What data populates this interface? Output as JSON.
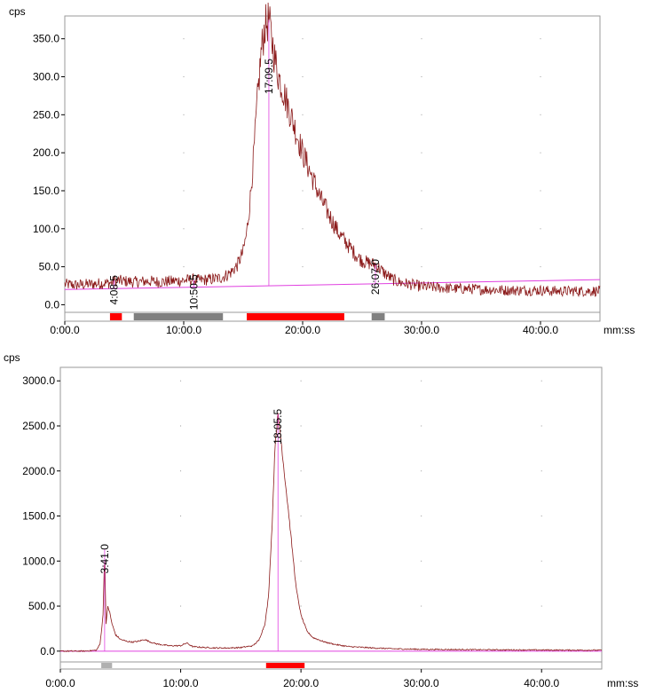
{
  "colors": {
    "trace": "#8b1a1a",
    "baseline": "#e040e0",
    "frame": "#9a9a9a",
    "region_red": "#ff0000",
    "region_gray_dark": "#808080",
    "region_gray_light": "#b0b0b0"
  },
  "chart_data": [
    {
      "type": "line",
      "ylabel": "cps",
      "xlabel": "mm:ss",
      "xlim": [
        0,
        45
      ],
      "ylim": [
        -10,
        380
      ],
      "x_ticks": [
        "0:00.0",
        "10:00.0",
        "20:00.0",
        "30:00.0",
        "40:00.0"
      ],
      "x_tick_values": [
        0,
        10,
        20,
        30,
        40
      ],
      "y_ticks": [
        "0.0",
        "50.0",
        "100.0",
        "150.0",
        "200.0",
        "250.0",
        "300.0",
        "350.0"
      ],
      "y_tick_values": [
        0,
        50,
        100,
        150,
        200,
        250,
        300,
        350
      ],
      "series": [
        {
          "x": [
            0,
            1,
            2,
            3,
            4,
            4.14,
            5,
            6,
            7,
            8,
            9,
            10,
            10.84,
            11,
            12,
            13,
            13.5,
            14,
            14.5,
            15,
            15.3,
            15.6,
            15.9,
            16.2,
            16.5,
            16.8,
            17.16,
            17.4,
            17.7,
            18.0,
            18.5,
            19,
            19.5,
            20,
            20.5,
            21,
            21.5,
            22,
            22.5,
            23,
            23.5,
            24,
            24.5,
            25,
            25.5,
            26.12,
            26.5,
            27,
            27.5,
            28,
            29,
            30,
            31,
            32,
            33,
            34,
            35,
            36,
            37,
            38,
            39,
            40,
            41,
            42,
            43,
            44,
            45
          ],
          "y": [
            27,
            26,
            27,
            28,
            29,
            32,
            31,
            30,
            31,
            30,
            31,
            32,
            33,
            32,
            33,
            35,
            38,
            43,
            52,
            70,
            95,
            140,
            200,
            270,
            330,
            365,
            375,
            350,
            320,
            300,
            275,
            250,
            225,
            200,
            180,
            160,
            140,
            125,
            110,
            95,
            85,
            75,
            65,
            58,
            55,
            53,
            47,
            40,
            34,
            30,
            27,
            24,
            23,
            22,
            21,
            21,
            20,
            20,
            19,
            19,
            19,
            19,
            18,
            18,
            18,
            18,
            18
          ]
        }
      ],
      "baselines": [
        [
          [
            0,
            20
          ],
          [
            45,
            33
          ]
        ]
      ],
      "peaks": [
        {
          "label": "4:08.5",
          "x": 4.14,
          "y": 32
        },
        {
          "label": "10:50.5",
          "x": 10.84,
          "y": 33
        },
        {
          "label": "17:09.5",
          "x": 17.16,
          "y": 375
        },
        {
          "label": "26:07.0",
          "x": 26.12,
          "y": 53
        }
      ],
      "regions": [
        {
          "start": 3.8,
          "end": 4.8,
          "color": "red"
        },
        {
          "start": 5.8,
          "end": 13.3,
          "color": "gray_dark"
        },
        {
          "start": 15.3,
          "end": 23.5,
          "color": "red"
        },
        {
          "start": 25.8,
          "end": 26.9,
          "color": "gray_dark"
        }
      ]
    },
    {
      "type": "line",
      "ylabel": "cps",
      "xlabel": "mm:ss",
      "xlim": [
        0,
        45
      ],
      "ylim": [
        -120,
        3150
      ],
      "x_ticks": [
        "0:00.0",
        "10:00.0",
        "20:00.0",
        "30:00.0",
        "40:00.0"
      ],
      "x_tick_values": [
        0,
        10,
        20,
        30,
        40
      ],
      "y_ticks": [
        "0.0",
        "500.0",
        "1000.0",
        "1500.0",
        "2000.0",
        "2500.0",
        "3000.0"
      ],
      "y_tick_values": [
        0,
        500,
        1000,
        1500,
        2000,
        2500,
        3000
      ],
      "series": [
        {
          "x": [
            0,
            2,
            3,
            3.3,
            3.55,
            3.68,
            3.8,
            3.95,
            4.1,
            4.3,
            4.6,
            5.0,
            5.5,
            6.0,
            6.5,
            7.0,
            7.5,
            8.0,
            9.0,
            10.0,
            10.5,
            11,
            12,
            13,
            14,
            15,
            16,
            16.5,
            17.0,
            17.3,
            17.6,
            17.85,
            18.09,
            18.3,
            18.6,
            19.0,
            19.3,
            19.6,
            20.0,
            20.5,
            21,
            22,
            23,
            24,
            26,
            28,
            30,
            35,
            40,
            45
          ],
          "y": [
            0,
            0,
            10,
            80,
            400,
            1130,
            300,
            500,
            430,
            300,
            180,
            130,
            110,
            100,
            110,
            130,
            100,
            80,
            60,
            60,
            90,
            50,
            40,
            35,
            35,
            40,
            60,
            120,
            300,
            600,
            1400,
            2300,
            2630,
            2400,
            2000,
            1500,
            1100,
            700,
            400,
            220,
            150,
            100,
            70,
            50,
            35,
            25,
            20,
            15,
            12,
            10
          ]
        }
      ],
      "baselines": [
        [
          [
            0,
            0
          ],
          [
            45,
            0
          ]
        ]
      ],
      "peaks": [
        {
          "label": "3:41.0",
          "x": 3.68,
          "y": 1130
        },
        {
          "label": "18:05.5",
          "x": 18.09,
          "y": 2630
        }
      ],
      "regions": [
        {
          "start": 3.4,
          "end": 4.3,
          "color": "gray_light"
        },
        {
          "start": 17.1,
          "end": 20.3,
          "color": "red"
        }
      ]
    }
  ]
}
